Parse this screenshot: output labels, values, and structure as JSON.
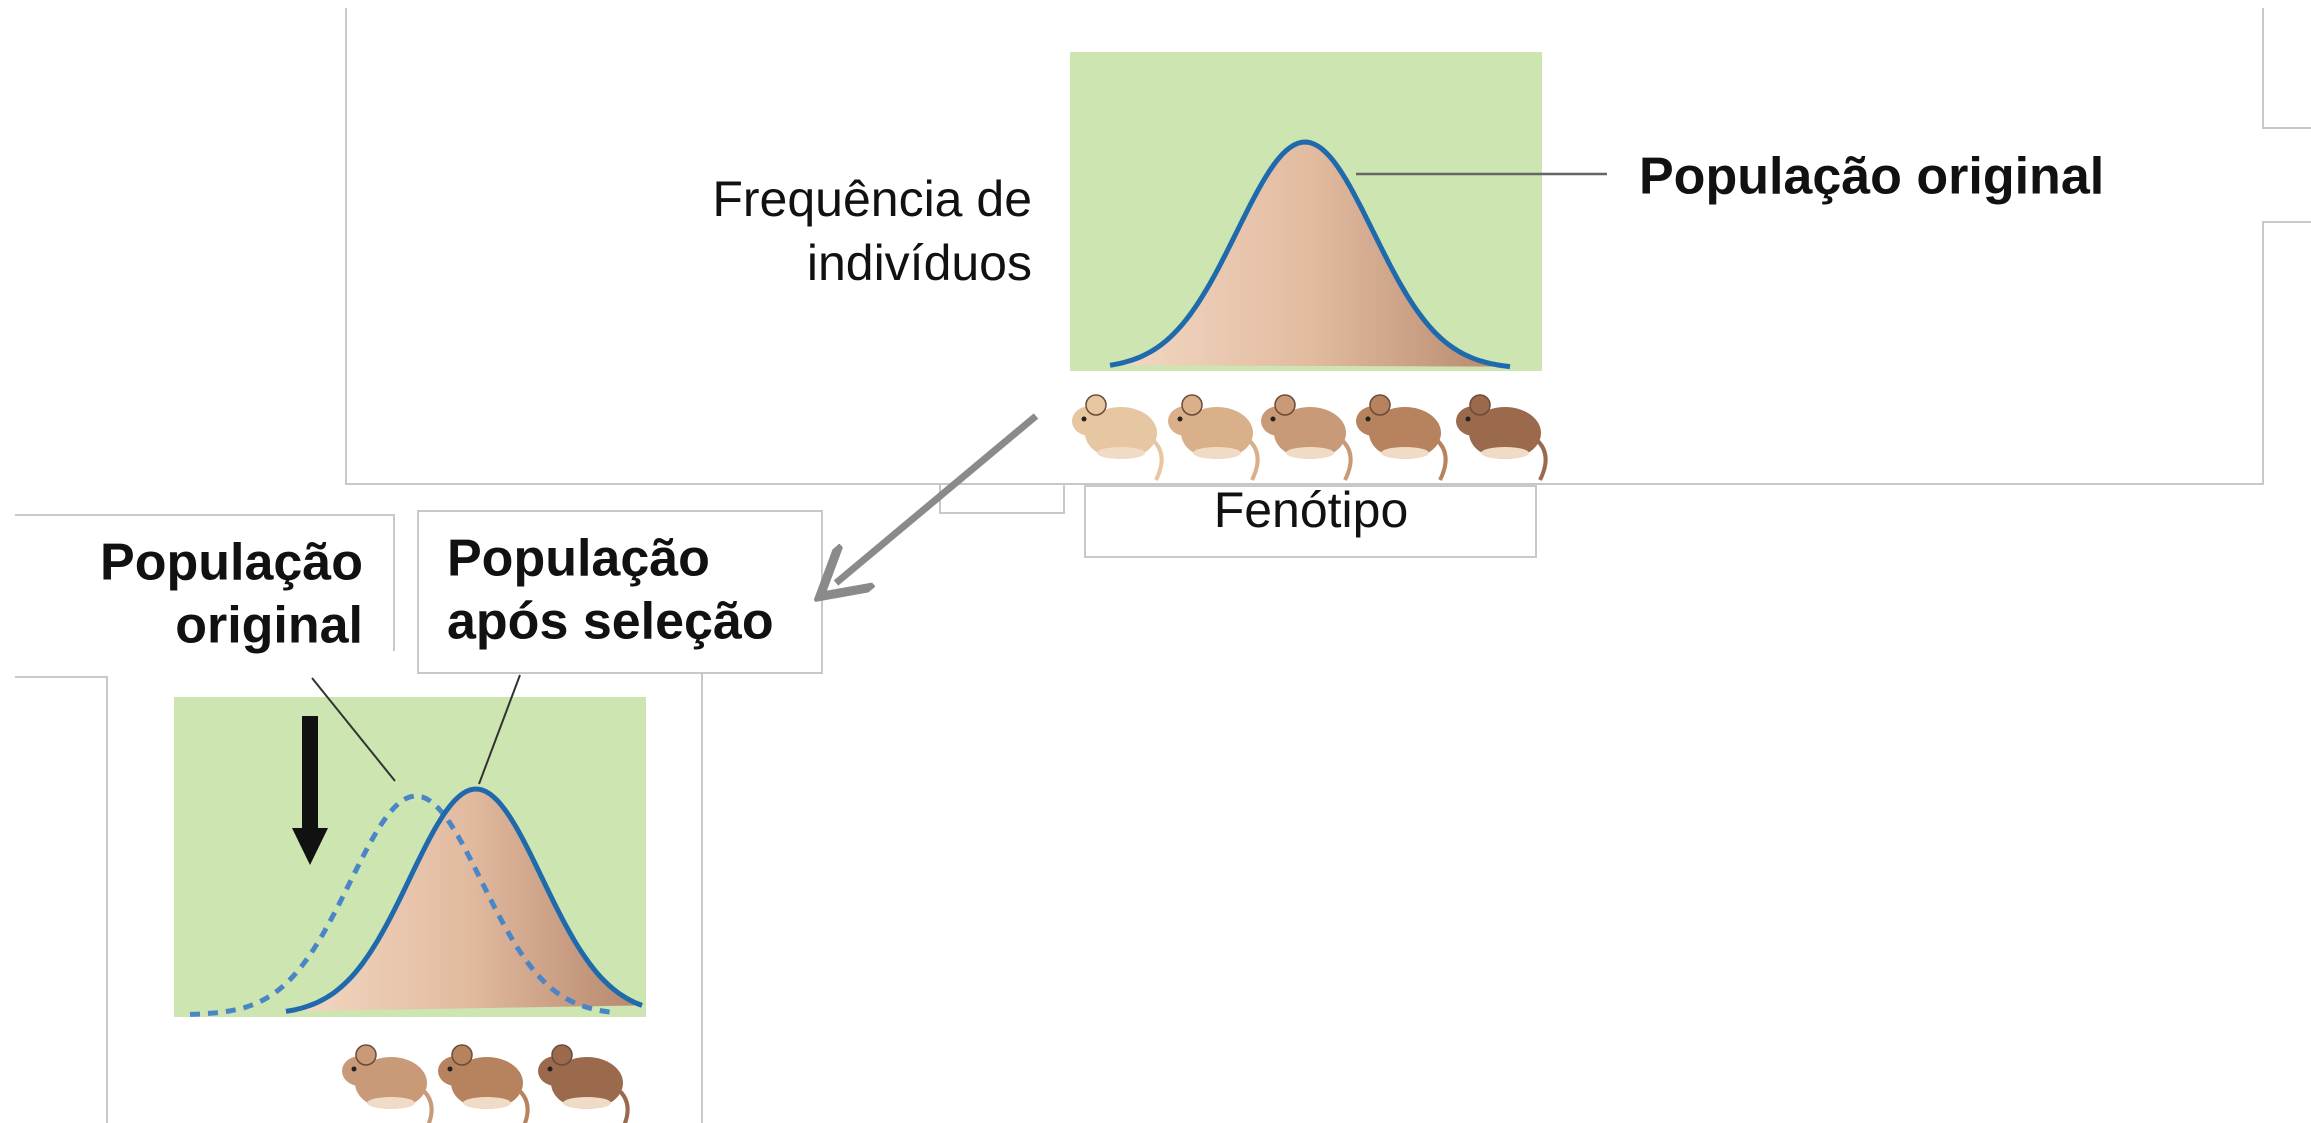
{
  "top_panel": {
    "y_label": [
      "Frequência de",
      "indivíduos"
    ],
    "curve_label": "População original",
    "x_label": "Fenótipo"
  },
  "bottom_panel": {
    "original_label": [
      "População",
      "original"
    ],
    "selected_label": [
      "População",
      "após seleção"
    ]
  }
}
